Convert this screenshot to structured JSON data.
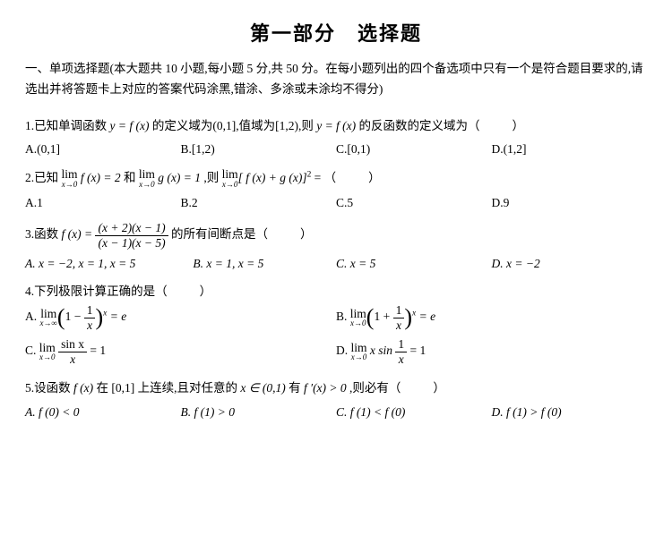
{
  "title": "第一部分　选择题",
  "instructions": "一、单项选择题(本大题共 10 小题,每小题 5 分,共 50 分。在每小题列出的四个备选项中只有一个是符合题目要求的,请选出并将答题卡上对应的答案代码涂黑,错涂、多涂或未涂均不得分)",
  "q1": {
    "stem_pre": "1.已知单调函数 ",
    "stem_mid": " 的定义域为(0,1],值域为[1,2),则 ",
    "stem_post": " 的反函数的定义域为（",
    "stem_end": "）",
    "fx": "y = f (x)",
    "fx2": "y = f (x)",
    "opts": {
      "A": "A.(0,1]",
      "B": "B.[1,2)",
      "C": "C.[0,1)",
      "D": "D.(1,2]"
    }
  },
  "q2": {
    "stem_pre": "2.已知 ",
    "and": " 和 ",
    "then": " ,则 ",
    "eq": " = （",
    "end": "）",
    "lim1_top": "lim",
    "lim1_bot": "x→0",
    "lim1_body": " f (x) = 2",
    "lim2_top": "lim",
    "lim2_bot": "x→0",
    "lim2_body": " g (x) = 1",
    "lim3_top": "lim",
    "lim3_bot": "x→0",
    "lim3_body_pre": "[ f (x) + g (x)]",
    "lim3_sup": "2",
    "opts": {
      "A": "A.1",
      "B": "B.2",
      "C": "C.5",
      "D": "D.9"
    }
  },
  "q3": {
    "stem_pre": "3.函数 ",
    "f": "f (x) = ",
    "num": "(x + 2)(x − 1)",
    "den": "(x − 1)(x − 5)",
    "stem_post": " 的所有间断点是（",
    "end": "）",
    "opts": {
      "A": "A. x = −2, x = 1, x = 5",
      "B": "B. x = 1, x = 5",
      "C": "C. x = 5",
      "D": "D. x = −2"
    }
  },
  "q4": {
    "stem": "4.下列极限计算正确的是（",
    "end": "）",
    "limA_top": "lim",
    "limA_bot": "x→∞",
    "limB_top": "lim",
    "limB_bot": "x→0",
    "limC_top": "lim",
    "limC_bot": "x→0",
    "limD_top": "lim",
    "limD_bot": "x→0",
    "one": "1",
    "x": "x",
    "sup_x": "x",
    "eq_e": " = e",
    "sinx": "sin x",
    "eq1": " = 1",
    "xsin": "x sin",
    "A": "A. ",
    "B": "B. ",
    "C": "C. ",
    "D": "D. "
  },
  "q5": {
    "stem_pre": "5.设函数 ",
    "fx": "f (x)",
    "mid1": " 在 [0,1] 上连续,且对任意的 ",
    "xin": "x ∈ (0,1)",
    "mid2": " 有 ",
    "fprime": "f ′(x) > 0",
    "mid3": " ,则必有（",
    "end": "）",
    "opts": {
      "A": "A. f (0) < 0",
      "B": "B. f (1) > 0",
      "C": "C. f (1) < f (0)",
      "D": "D. f (1) > f (0)"
    }
  }
}
